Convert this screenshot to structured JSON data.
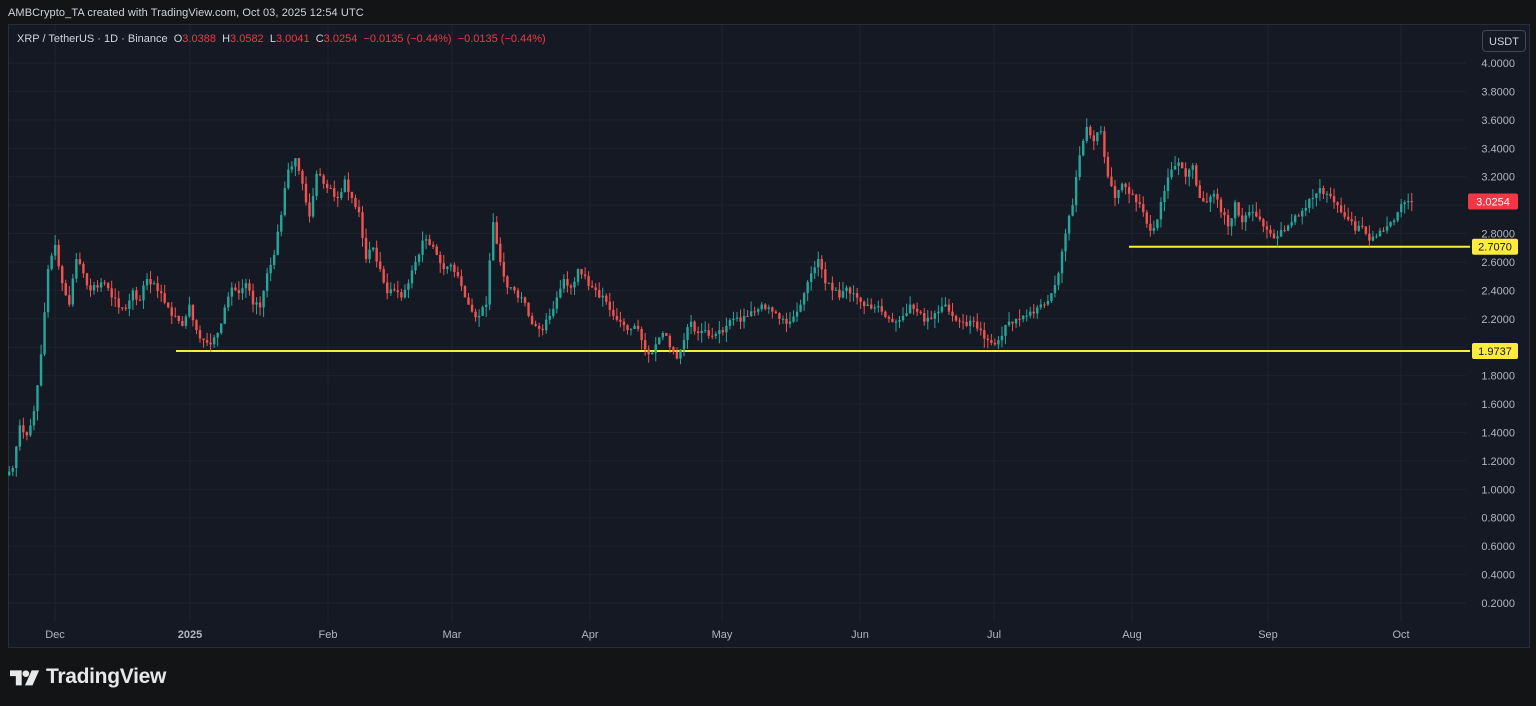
{
  "credit": "AMBCrypto_TA created with TradingView.com, Oct 03, 2025 12:54 UTC",
  "legend": {
    "symbol": "XRP / TetherUS · 1D · Binance",
    "open_label": "O",
    "open": "3.0388",
    "high_label": "H",
    "high": "3.0582",
    "low_label": "L",
    "low": "3.0041",
    "close_label": "C",
    "close": "3.0254",
    "change": "−0.0135 (−0.44%)",
    "change2": "−0.0135 (−0.44%)"
  },
  "currency_button": "USDT",
  "brand": "TradingView",
  "colors": {
    "up": "#26a69a",
    "down": "#ef5350",
    "level": "#ffeb3b",
    "price_tag": "#f23645",
    "grid": "#1e222d",
    "axis_text": "#b2b5be"
  },
  "chart_data": {
    "type": "candlestick",
    "y_ticks": [
      "4.0000",
      "3.8000",
      "3.6000",
      "3.4000",
      "3.2000",
      "3.0000",
      "2.8000",
      "2.6000",
      "2.4000",
      "2.2000",
      "2.0000",
      "1.8000",
      "1.6000",
      "1.4000",
      "1.2000",
      "1.0000",
      "0.8000",
      "0.6000",
      "0.4000",
      "0.2000"
    ],
    "ylim": [
      0.1,
      4.1
    ],
    "x_labels": [
      "Dec",
      "2025",
      "Feb",
      "Mar",
      "Apr",
      "May",
      "Jun",
      "Jul",
      "Aug",
      "Sep",
      "Oct"
    ],
    "last_price": 3.0254,
    "last_price_label": "3.0254",
    "levels": [
      {
        "value": 2.707,
        "label": "2.7070",
        "from": "Aug"
      },
      {
        "value": 1.9737,
        "label": "1.9737",
        "from": "2025"
      }
    ],
    "closes": [
      1.15,
      1.45,
      1.38,
      1.55,
      1.95,
      2.55,
      2.72,
      2.45,
      2.3,
      2.62,
      2.52,
      2.4,
      2.42,
      2.45,
      2.35,
      2.28,
      2.27,
      2.4,
      2.33,
      2.48,
      2.45,
      2.38,
      2.28,
      2.22,
      2.15,
      2.3,
      2.12,
      2.05,
      2.02,
      2.1,
      2.28,
      2.42,
      2.38,
      2.45,
      2.3,
      2.28,
      2.52,
      2.65,
      2.93,
      3.25,
      3.33,
      3.15,
      2.92,
      3.22,
      3.15,
      3.12,
      3.05,
      3.18,
      3.05,
      2.95,
      2.62,
      2.7,
      2.55,
      2.38,
      2.4,
      2.35,
      2.45,
      2.6,
      2.75,
      2.72,
      2.65,
      2.55,
      2.58,
      2.5,
      2.35,
      2.25,
      2.22,
      2.3,
      2.88,
      2.6,
      2.42,
      2.4,
      2.35,
      2.22,
      2.15,
      2.12,
      2.22,
      2.35,
      2.48,
      2.42,
      2.55,
      2.5,
      2.42,
      2.35,
      2.32,
      2.22,
      2.18,
      2.12,
      2.15,
      2.05,
      1.95,
      2.02,
      2.1,
      2.0,
      1.92,
      2.05,
      2.18,
      2.1,
      2.12,
      2.08,
      2.12,
      2.15,
      2.2,
      2.18,
      2.22,
      2.25,
      2.3,
      2.28,
      2.24,
      2.2,
      2.18,
      2.25,
      2.38,
      2.52,
      2.62,
      2.45,
      2.4,
      2.35,
      2.42,
      2.38,
      2.32,
      2.3,
      2.28,
      2.25,
      2.2,
      2.18,
      2.22,
      2.3,
      2.25,
      2.18,
      2.2,
      2.25,
      2.3,
      2.22,
      2.18,
      2.15,
      2.18,
      2.12,
      2.05,
      2.02,
      2.08,
      2.18,
      2.2,
      2.22,
      2.25,
      2.28,
      2.3,
      2.38,
      2.52,
      2.8,
      3.0,
      3.35,
      3.55,
      3.45,
      3.52,
      3.2,
      3.05,
      3.15,
      3.08,
      3.02,
      2.95,
      2.82,
      2.9,
      3.1,
      3.25,
      3.3,
      3.2,
      3.28,
      3.05,
      3.02,
      3.08,
      2.95,
      2.85,
      3.02,
      2.88,
      2.95,
      2.92,
      2.85,
      2.8,
      2.78,
      2.82,
      2.88,
      2.92,
      2.98,
      3.05,
      3.12,
      3.08,
      3.02,
      2.95,
      2.9,
      2.82,
      2.85,
      2.75,
      2.78,
      2.82,
      2.88,
      2.95,
      3.02,
      3.0254
    ]
  }
}
